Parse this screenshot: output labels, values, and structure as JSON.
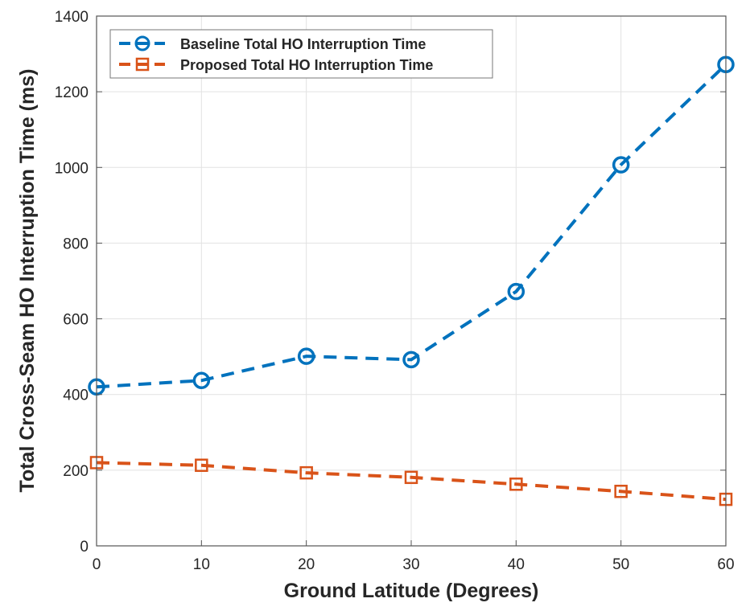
{
  "chart_data": {
    "type": "line",
    "title": "",
    "xlabel": "Ground Latitude (Degrees)",
    "ylabel": "Total Cross-Seam HO Interruption Time (ms)",
    "xlim": [
      0,
      60
    ],
    "ylim": [
      0,
      1400
    ],
    "xticks": [
      0,
      10,
      20,
      30,
      40,
      50,
      60
    ],
    "yticks": [
      0,
      200,
      400,
      600,
      800,
      1000,
      1200,
      1400
    ],
    "grid": true,
    "legend_position": "top-left",
    "x": [
      0,
      10,
      20,
      30,
      40,
      50,
      60
    ],
    "series": [
      {
        "name": "Baseline Total HO Interruption Time",
        "color": "#0072BD",
        "marker": "circle",
        "line": "dashed",
        "values": [
          420,
          437,
          501,
          492,
          672,
          1007,
          1272
        ]
      },
      {
        "name": "Proposed Total HO Interruption Time",
        "color": "#D95319",
        "marker": "square",
        "line": "dashed",
        "values": [
          220,
          213,
          193,
          181,
          163,
          144,
          123
        ]
      }
    ]
  }
}
